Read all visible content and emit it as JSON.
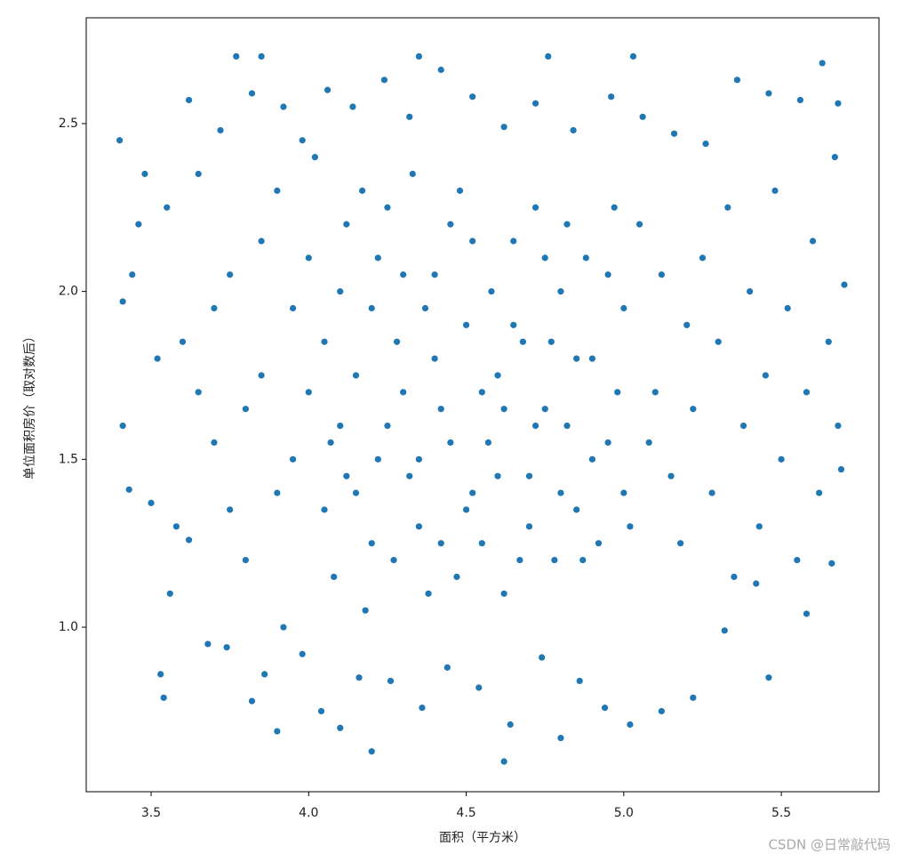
{
  "chart_data": {
    "type": "scatter",
    "x_label": "面积（平方米）",
    "y_label": "单位面积房价（取对数后）",
    "watermark": "CSDN @日常敲代码",
    "color": "#1f77b4",
    "xlim": [
      3.294,
      5.81
    ],
    "ylim": [
      0.51,
      2.815
    ],
    "xticks": [
      3.5,
      {
        "value": 4.0,
        "label": "4.0"
      },
      4.5,
      {
        "value": 5.0,
        "label": "5.0"
      },
      5.5
    ],
    "yticks": [
      {
        "value": 1.0,
        "label": "1.0"
      },
      1.5,
      {
        "value": 2.0,
        "label": "2.0"
      },
      2.5
    ],
    "x": [
      3.4,
      3.41,
      3.41,
      3.43,
      3.53,
      3.54,
      3.9,
      4.2,
      4.62,
      4.8,
      5.46,
      5.69,
      5.68,
      5.63,
      3.77,
      3.85,
      4.35,
      4.76,
      5.03,
      4.0,
      4.05,
      4.1,
      4.15,
      4.2,
      4.25,
      4.3,
      4.35,
      4.4,
      4.45,
      4.5,
      4.55,
      4.6,
      4.65,
      4.7,
      4.75,
      4.8,
      4.85,
      4.9,
      4.95,
      5.0,
      5.05,
      5.1,
      5.15,
      5.2,
      3.95,
      3.9,
      3.85,
      3.8,
      3.75,
      3.7,
      3.65,
      3.6,
      3.58,
      4.02,
      4.08,
      4.12,
      4.18,
      4.22,
      4.28,
      4.33,
      4.38,
      4.42,
      4.48,
      4.52,
      4.58,
      4.62,
      4.68,
      4.72,
      4.78,
      4.82,
      4.88,
      4.92,
      4.98,
      5.02,
      5.08,
      5.12,
      5.18,
      5.22,
      5.25,
      5.28,
      5.3,
      5.33,
      5.35,
      5.38,
      5.4,
      5.43,
      5.45,
      5.48,
      5.5,
      5.52,
      5.55,
      5.58,
      5.6,
      5.62,
      5.65,
      5.67,
      5.68,
      5.7,
      5.66,
      3.55,
      3.52,
      3.48,
      3.46,
      3.44,
      3.5,
      3.56,
      3.62,
      3.68,
      3.74,
      3.82,
      3.86,
      3.92,
      3.98,
      4.04,
      4.1,
      4.16,
      4.26,
      4.36,
      4.44,
      4.54,
      4.64,
      4.74,
      4.86,
      4.94,
      5.02,
      5.12,
      5.22,
      5.32,
      5.42,
      5.58,
      4.06,
      4.14,
      4.24,
      4.32,
      4.42,
      4.52,
      4.62,
      4.72,
      4.84,
      4.96,
      5.06,
      5.16,
      5.26,
      5.36,
      5.46,
      5.56,
      3.62,
      3.72,
      3.82,
      3.92,
      3.98,
      4.05,
      4.1,
      4.15,
      4.2,
      4.25,
      4.3,
      4.35,
      4.4,
      4.45,
      4.5,
      4.55,
      4.6,
      4.65,
      4.7,
      4.75,
      4.8,
      4.85,
      4.9,
      4.95,
      5.0,
      4.0,
      3.95,
      3.9,
      3.85,
      3.8,
      3.75,
      3.7,
      3.65,
      4.07,
      4.17,
      4.27,
      4.37,
      4.47,
      4.57,
      4.67,
      4.77,
      4.87,
      4.97,
      4.12,
      4.22,
      4.32,
      4.42,
      4.52,
      4.62,
      4.72,
      4.82
    ],
    "y": [
      2.45,
      1.97,
      1.6,
      1.41,
      0.86,
      0.79,
      0.69,
      0.63,
      0.6,
      0.67,
      0.85,
      1.47,
      2.56,
      2.68,
      2.7,
      2.7,
      2.7,
      2.7,
      2.7,
      2.1,
      1.85,
      1.6,
      1.4,
      1.95,
      2.25,
      1.7,
      1.3,
      2.05,
      1.55,
      1.9,
      1.25,
      1.75,
      2.15,
      1.45,
      1.65,
      2.0,
      1.35,
      1.8,
      1.55,
      1.95,
      2.2,
      1.7,
      1.45,
      1.9,
      1.5,
      2.3,
      1.75,
      1.2,
      2.05,
      1.55,
      2.35,
      1.85,
      1.3,
      2.4,
      1.15,
      2.2,
      1.05,
      1.5,
      1.85,
      2.35,
      1.1,
      1.65,
      2.3,
      1.4,
      2.0,
      1.1,
      1.85,
      2.25,
      1.2,
      1.6,
      2.1,
      1.25,
      1.7,
      1.3,
      1.55,
      2.05,
      1.25,
      1.65,
      2.1,
      1.4,
      1.85,
      2.25,
      1.15,
      1.6,
      2.0,
      1.3,
      1.75,
      2.3,
      1.5,
      1.95,
      1.2,
      1.7,
      2.15,
      1.4,
      1.85,
      2.4,
      1.6,
      2.02,
      1.19,
      2.25,
      1.8,
      2.35,
      2.2,
      2.05,
      1.37,
      1.1,
      1.26,
      0.95,
      0.94,
      0.78,
      0.86,
      1.0,
      0.92,
      0.75,
      0.7,
      0.85,
      0.84,
      0.76,
      0.88,
      0.82,
      0.71,
      0.91,
      0.84,
      0.76,
      0.71,
      0.75,
      0.79,
      0.99,
      1.13,
      1.04,
      2.6,
      2.55,
      2.63,
      2.52,
      2.66,
      2.58,
      2.49,
      2.56,
      2.48,
      2.58,
      2.52,
      2.47,
      2.44,
      2.63,
      2.59,
      2.57,
      2.57,
      2.48,
      2.59,
      2.55,
      2.45,
      1.35,
      2.0,
      1.75,
      1.25,
      1.6,
      2.05,
      1.5,
      1.8,
      2.2,
      1.35,
      1.7,
      1.45,
      1.9,
      1.3,
      2.1,
      1.4,
      1.8,
      1.5,
      2.05,
      1.4,
      1.7,
      1.95,
      1.4,
      2.15,
      1.65,
      1.35,
      1.95,
      1.7,
      1.55,
      2.3,
      1.2,
      1.95,
      1.15,
      1.55,
      1.2,
      1.85,
      1.2,
      2.25,
      1.45,
      2.1,
      1.45,
      1.25,
      2.15,
      1.65,
      1.6,
      2.2
    ]
  }
}
